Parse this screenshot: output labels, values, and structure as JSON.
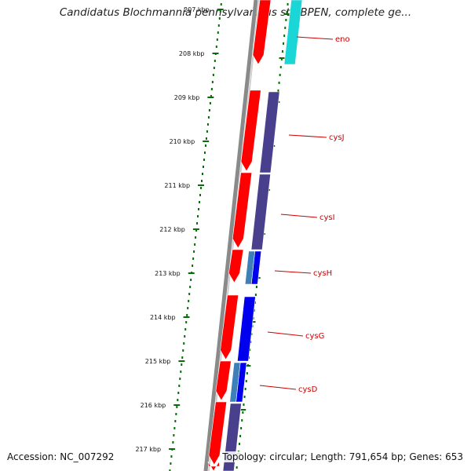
{
  "header": {
    "title": "Candidatus Blochmannia pennsylvanicus str. BPEN, complete ge..."
  },
  "footer": {
    "accession": "Accession: NC_007292",
    "topology": "Topology: circular; Length: 791,654 bp; Genes: 653"
  },
  "ruler": {
    "ticks": [
      "207 kbp",
      "208 kbp",
      "209 kbp",
      "210 kbp",
      "211 kbp",
      "212 kbp",
      "213 kbp",
      "214 kbp",
      "215 kbp",
      "216 kbp",
      "217 kbp"
    ]
  },
  "genes": [
    "eno",
    "cysJ",
    "cysI",
    "cysH",
    "cysG",
    "cysD"
  ],
  "colors": {
    "forward": "#ff0000",
    "cyan": "#1ad6d6",
    "slate": "#48408c",
    "blue": "#0000ee",
    "steel": "#3d7fb8",
    "tick": "#0a6b0a",
    "label": "#cc0000",
    "backbone": "#7a7a7a"
  }
}
